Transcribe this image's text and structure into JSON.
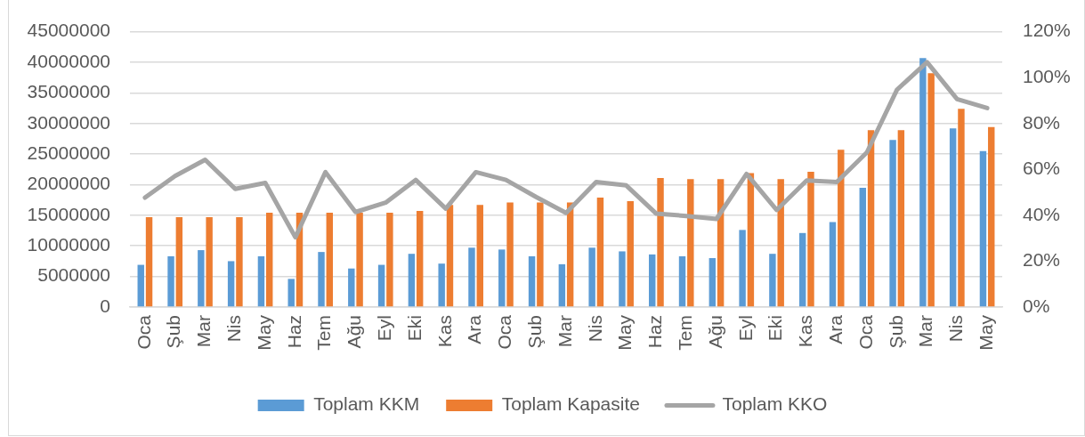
{
  "chart_data": {
    "type": "bar",
    "categories": [
      "Oca",
      "Şub",
      "Mar",
      "Nis",
      "May",
      "Haz",
      "Tem",
      "Ağu",
      "Eyl",
      "Eki",
      "Kas",
      "Ara",
      "Oca",
      "Şub",
      "Mar",
      "Nis",
      "May",
      "Haz",
      "Tem",
      "Ağu",
      "Eyl",
      "Eki",
      "Kas",
      "Ara",
      "Oca",
      "Şub",
      "Mar",
      "Nis",
      "May"
    ],
    "series": [
      {
        "name": "Toplam KKM",
        "color": "#5b9bd5",
        "values": [
          6900000,
          8300000,
          9300000,
          7500000,
          8300000,
          4600000,
          9000000,
          6300000,
          6900000,
          8700000,
          7100000,
          9700000,
          9400000,
          8300000,
          7000000,
          9700000,
          9100000,
          8600000,
          8300000,
          8000000,
          12600000,
          8700000,
          12100000,
          13900000,
          19500000,
          27300000,
          40700000,
          29200000,
          25500000
        ]
      },
      {
        "name": "Toplam Kapasite",
        "color": "#ed7d31",
        "values": [
          14700000,
          14700000,
          14700000,
          14700000,
          15400000,
          15400000,
          15400000,
          15400000,
          15400000,
          15700000,
          16700000,
          16700000,
          17100000,
          17100000,
          17100000,
          17900000,
          17300000,
          21100000,
          20900000,
          20900000,
          21900000,
          20900000,
          22100000,
          25700000,
          28900000,
          28900000,
          38200000,
          32400000,
          29400000
        ]
      },
      {
        "name": "Toplam KKO",
        "type": "line",
        "axis": "y2",
        "color": "#a5a5a5",
        "values": [
          47.7,
          57.1,
          64.2,
          51.5,
          54.1,
          30.4,
          58.8,
          41.4,
          45.5,
          55.4,
          42.9,
          58.8,
          55.4,
          48.0,
          41.0,
          54.5,
          53.0,
          40.7,
          39.7,
          38.4,
          58.0,
          42.3,
          55.2,
          54.5,
          67.4,
          94.7,
          106.7,
          90.6,
          86.7
        ]
      }
    ],
    "ylim": [
      0,
      45000000
    ],
    "yticks": [
      0,
      5000000,
      10000000,
      15000000,
      20000000,
      25000000,
      30000000,
      35000000,
      40000000,
      45000000
    ],
    "y2lim": [
      0,
      120
    ],
    "y2ticks": [
      {
        "value": 0,
        "label": "0%"
      },
      {
        "value": 20,
        "label": "20%"
      },
      {
        "value": 40,
        "label": "40%"
      },
      {
        "value": 60,
        "label": "60%"
      },
      {
        "value": 80,
        "label": "80%"
      },
      {
        "value": 100,
        "label": "100%"
      },
      {
        "value": 120,
        "label": "120%"
      }
    ],
    "grid": "y",
    "legend": "bottom",
    "marker": "none",
    "line_style": "solid"
  }
}
